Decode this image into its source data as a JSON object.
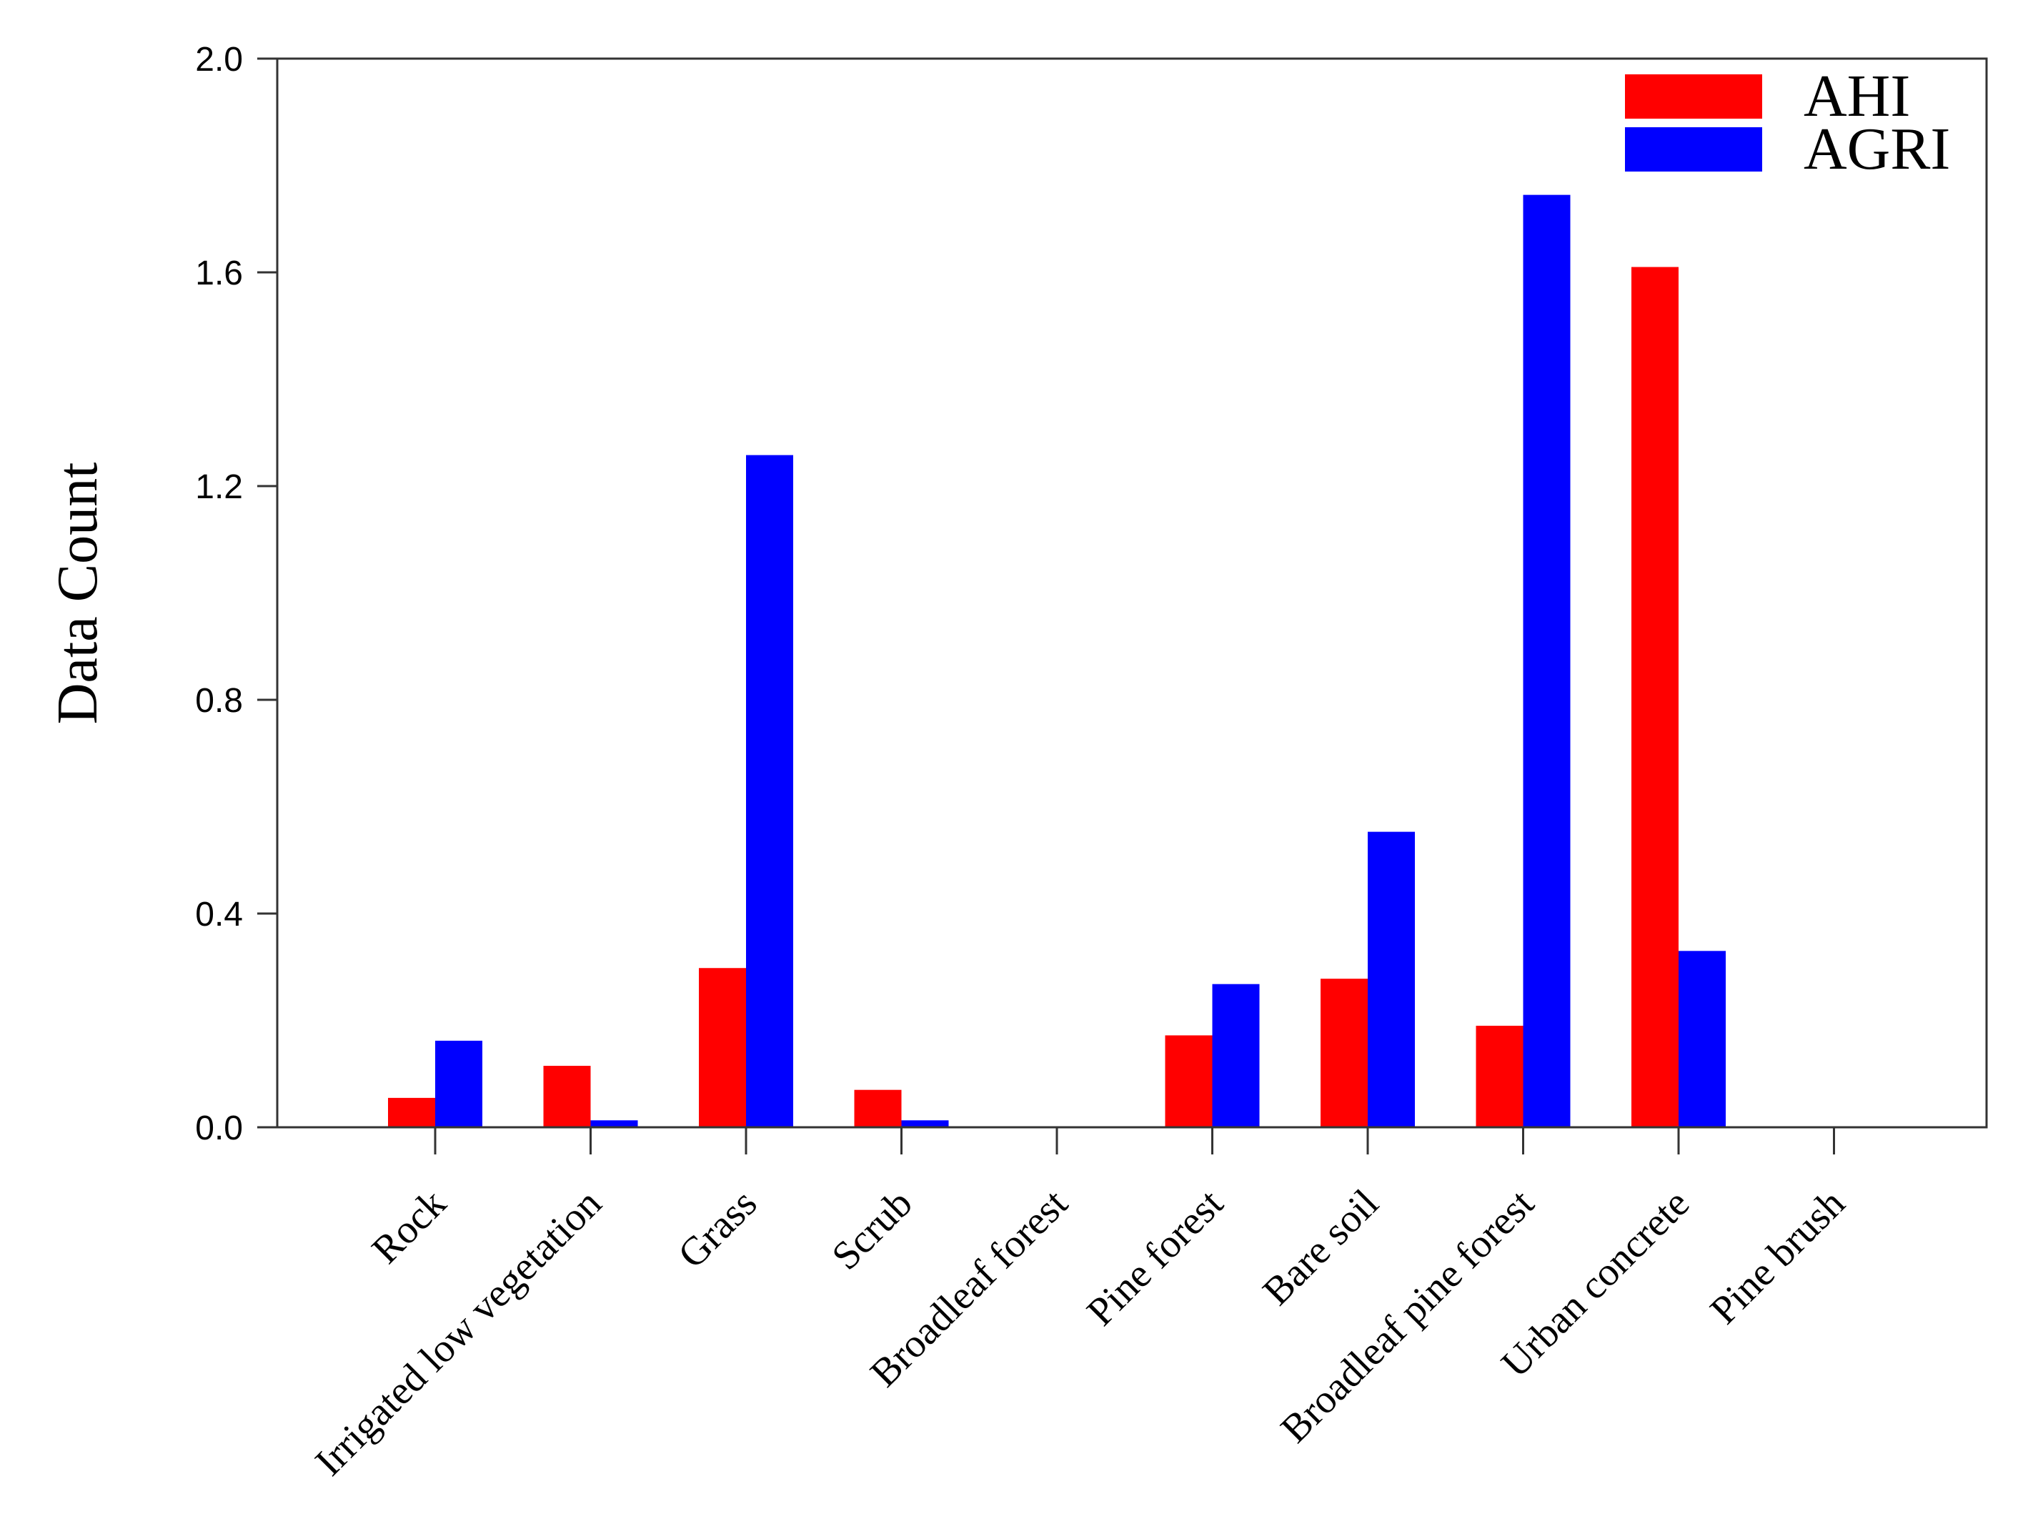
{
  "chart_data": {
    "type": "bar",
    "title": "",
    "xlabel": "",
    "ylabel": "Data Count",
    "ylim": [
      0.0,
      2.0
    ],
    "yticks": [
      "0.0",
      "0.4",
      "0.8",
      "1.2",
      "1.6",
      "2.0"
    ],
    "ytick_values": [
      0.0,
      0.4,
      0.8,
      1.2,
      1.6,
      2.0
    ],
    "grid": false,
    "legend_position": "top-right",
    "categories": [
      "Rock",
      "Irrigated low vegetation",
      "Grass",
      "Scrub",
      "Broadleaf forest",
      "Pine forest",
      "Bare soil",
      "Broadleaf pine forest",
      "Urban concrete",
      "Pine brush"
    ],
    "series": [
      {
        "name": "AHI",
        "color": "#ff0000",
        "values": [
          0.055,
          0.115,
          0.298,
          0.07,
          0.002,
          0.172,
          0.278,
          0.19,
          1.61,
          0.0
        ]
      },
      {
        "name": "AGRI",
        "color": "#0000ff",
        "values": [
          0.162,
          0.013,
          1.258,
          0.013,
          0.0,
          0.268,
          0.553,
          1.745,
          0.33,
          0.0
        ]
      }
    ]
  }
}
